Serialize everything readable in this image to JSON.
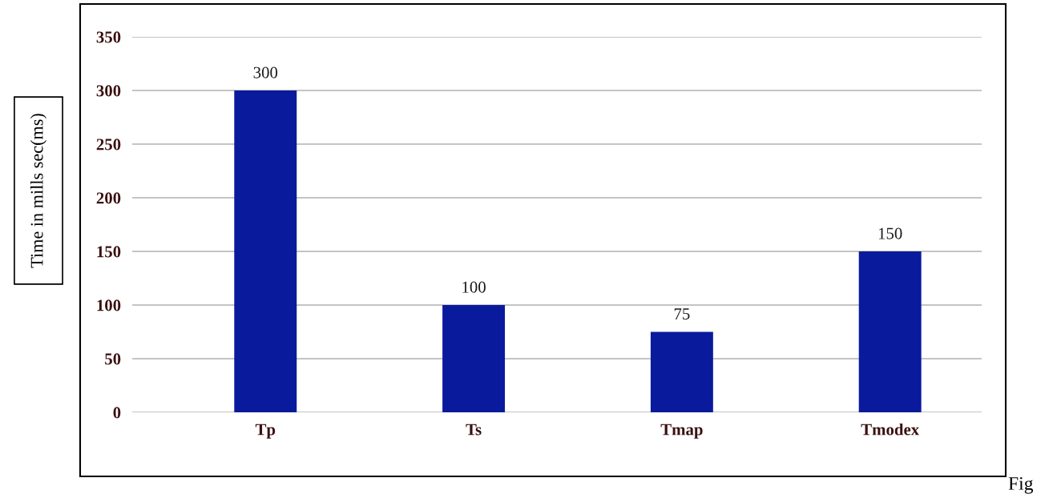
{
  "chart_data": {
    "type": "bar",
    "ylabel": "Time in mills sec(ms)",
    "categories": [
      "Tp",
      "Ts",
      "Tmap",
      "Tmodex"
    ],
    "values": [
      300,
      100,
      75,
      150
    ],
    "color": "#0a1a9c",
    "ylim": [
      0,
      350
    ],
    "yticks": [
      0,
      50,
      100,
      150,
      200,
      250,
      300,
      350
    ],
    "grid": "y",
    "data_labels": true,
    "legend": false,
    "annotations": [
      "Fig"
    ]
  }
}
